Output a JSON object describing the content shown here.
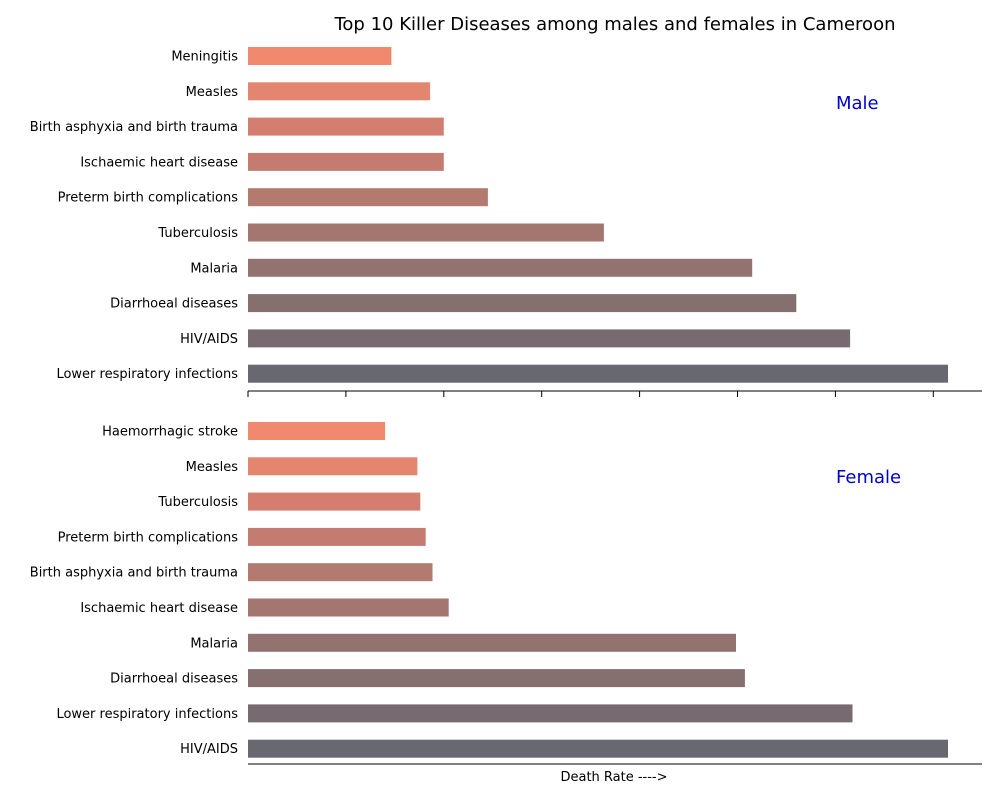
{
  "chart_data": {
    "type": "bar",
    "orientation": "horizontal",
    "title": "Top 10 Killer Diseases among males and females in Cameroon",
    "xlabel": "Death Rate ---->",
    "ylabel": "",
    "xlim": [
      0,
      15
    ],
    "grid": false,
    "panels": [
      {
        "label": "Male",
        "categories": [
          "Meningitis",
          "Measles",
          "Birth asphyxia and birth trauma",
          "Ischaemic heart disease",
          "Preterm birth complications",
          "Tuberculosis",
          "Malaria",
          "Diarrhoeal diseases",
          "HIV/AIDS",
          "Lower respiratory infections"
        ],
        "values": [
          2.93,
          3.72,
          4.0,
          4.0,
          4.9,
          7.27,
          10.3,
          11.2,
          12.3,
          14.3
        ]
      },
      {
        "label": "Female",
        "categories": [
          "Haemorrhagic stroke",
          "Measles",
          "Tuberculosis",
          "Preterm birth complications",
          "Birth asphyxia and birth trauma",
          "Ischaemic heart disease",
          "Malaria",
          "Diarrhoeal diseases",
          "Lower respiratory infections",
          "HIV/AIDS"
        ],
        "values": [
          2.8,
          3.46,
          3.52,
          3.63,
          3.77,
          4.1,
          9.97,
          10.15,
          12.35,
          14.3
        ]
      }
    ],
    "colors": [
      "#f0896d",
      "#e3856f",
      "#d47e6f",
      "#c47c71",
      "#b37a70",
      "#a37670",
      "#937370",
      "#856f6f",
      "#776a70",
      "#686870"
    ]
  }
}
